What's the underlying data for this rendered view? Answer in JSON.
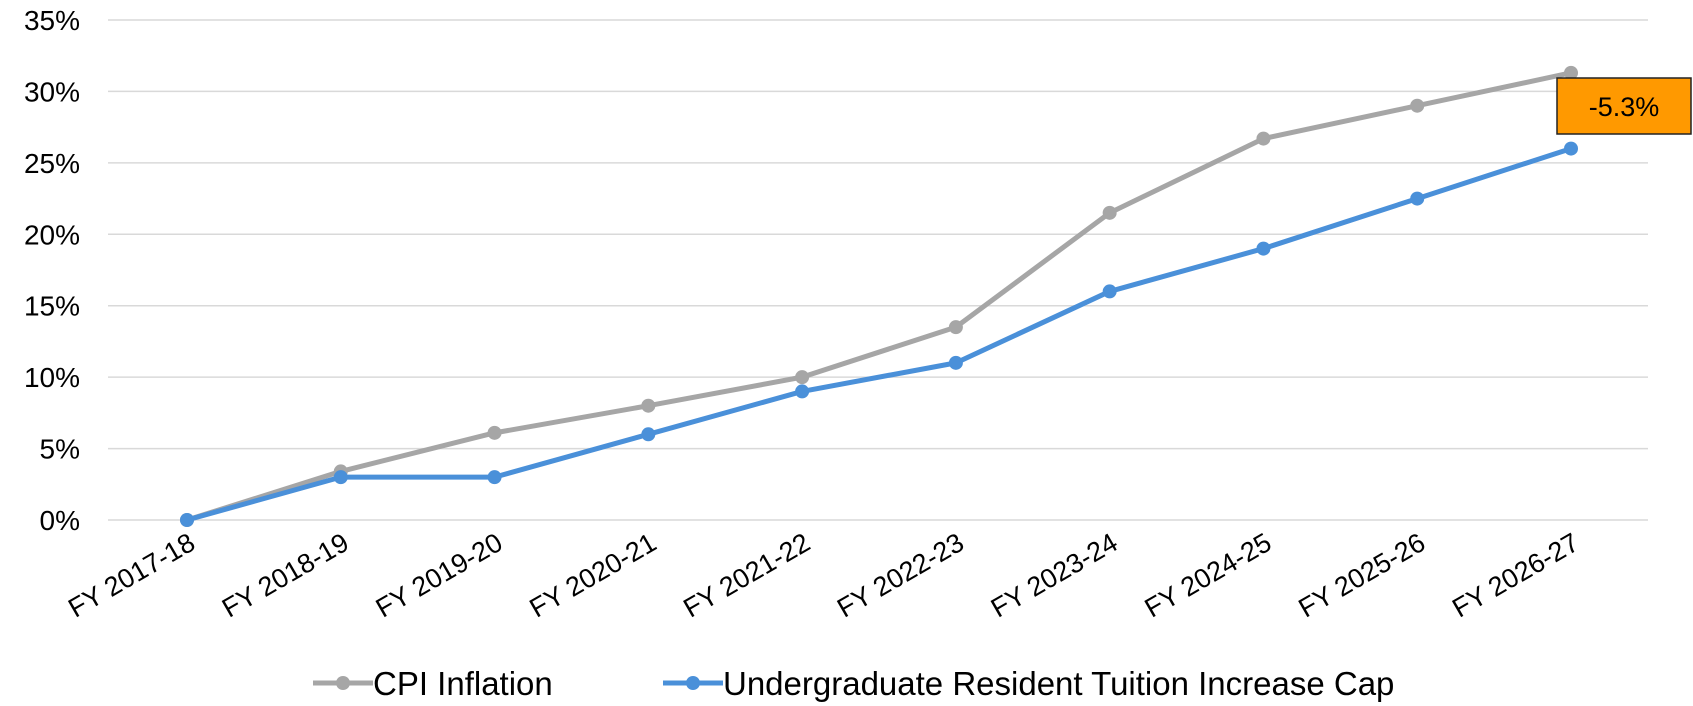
{
  "chart_data": {
    "type": "line",
    "categories": [
      "FY 2017-18",
      "FY 2018-19",
      "FY 2019-20",
      "FY 2020-21",
      "FY 2021-22",
      "FY 2022-23",
      "FY 2023-24",
      "FY 2024-25",
      "FY 2025-26",
      "FY 2026-27"
    ],
    "series": [
      {
        "name": "CPI Inflation",
        "color": "#a6a6a6",
        "values": [
          0,
          3.4,
          6.1,
          8.0,
          10.0,
          13.5,
          21.5,
          26.7,
          29.0,
          31.3
        ]
      },
      {
        "name": "Undergraduate Resident Tuition Increase Cap",
        "color": "#4a90d9",
        "values": [
          0,
          3.0,
          3.0,
          6.0,
          9.0,
          11.0,
          16.0,
          19.0,
          22.5,
          26.0
        ]
      }
    ],
    "ylim": [
      0,
      35
    ],
    "yticks": [
      "0%",
      "5%",
      "10%",
      "15%",
      "20%",
      "25%",
      "30%",
      "35%"
    ],
    "ytick_values": [
      0,
      5,
      10,
      15,
      20,
      25,
      30,
      35
    ],
    "grid": true,
    "legend_position": "bottom",
    "annotation": {
      "text": "-5.3%",
      "category": "FY 2026-27",
      "fill": "#ff9900"
    }
  }
}
